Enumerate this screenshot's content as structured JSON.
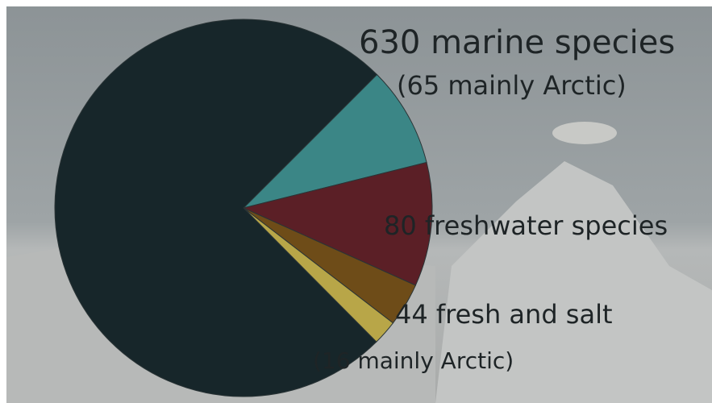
{
  "chart_data": {
    "type": "pie",
    "values": [
      65,
      80,
      28,
      16,
      565
    ],
    "colors": [
      "#3b8686",
      "#5b1f26",
      "#6e4c18",
      "#b8a648",
      "#17262a"
    ],
    "start_angle": -45,
    "annotations": [
      "630 marine species",
      "(65 mainly Arctic)",
      "80 freshwater species",
      "44 fresh and salt",
      "(16 mainly Arctic)"
    ]
  }
}
